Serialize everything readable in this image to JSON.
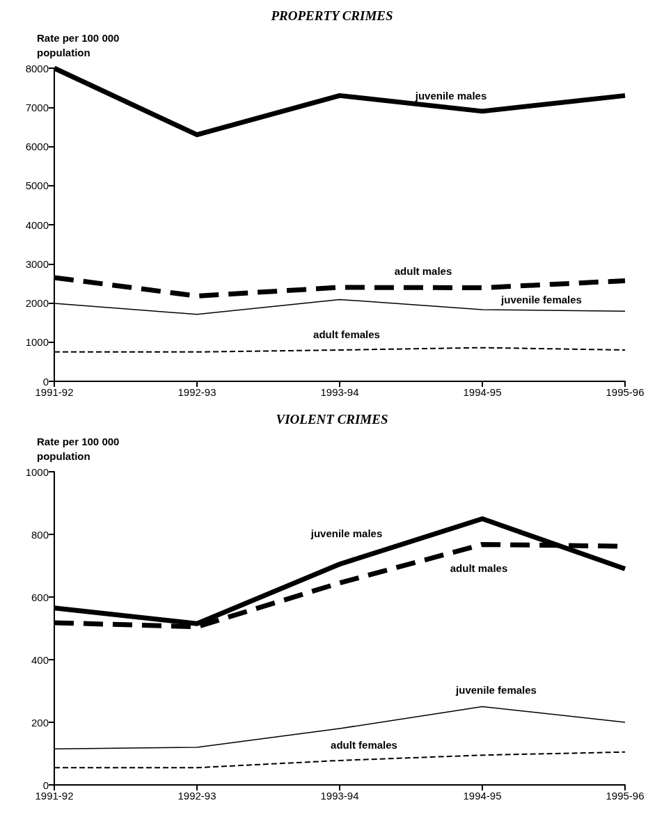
{
  "chart_data": [
    {
      "type": "line",
      "title": "PROPERTY CRIMES",
      "ylabel": "Rate per 100 000 population",
      "categories": [
        "1991-92",
        "1992-93",
        "1993-94",
        "1994-95",
        "1995-96"
      ],
      "ylim": [
        0,
        8000
      ],
      "yticks": [
        0,
        1000,
        2000,
        3000,
        4000,
        5000,
        6000,
        7000,
        8000
      ],
      "grid": false,
      "legend": false,
      "marker": "none",
      "series": [
        {
          "name": "juvenile males",
          "color": "#000000",
          "line_style": "solid",
          "values": [
            8000,
            6300,
            7300,
            6900,
            7300
          ]
        },
        {
          "name": "adult males",
          "color": "#000000",
          "line_style": "dashed",
          "values": [
            2650,
            2180,
            2400,
            2390,
            2570
          ]
        },
        {
          "name": "juvenile females",
          "color": "#000000",
          "line_style": "solid",
          "values": [
            1990,
            1710,
            2090,
            1830,
            1790
          ]
        },
        {
          "name": "adult females",
          "color": "#000000",
          "line_style": "dashed",
          "values": [
            750,
            750,
            800,
            860,
            800
          ]
        }
      ]
    },
    {
      "type": "line",
      "title": "VIOLENT CRIMES",
      "ylabel": "Rate per 100 000 population",
      "categories": [
        "1991-92",
        "1992-93",
        "1993-94",
        "1994-95",
        "1995-96"
      ],
      "ylim": [
        0,
        1000
      ],
      "yticks": [
        0,
        200,
        400,
        600,
        800,
        1000
      ],
      "grid": false,
      "legend": false,
      "marker": "none",
      "series": [
        {
          "name": "juvenile males",
          "color": "#000000",
          "line_style": "solid",
          "values": [
            565,
            515,
            705,
            850,
            690
          ]
        },
        {
          "name": "adult males",
          "color": "#000000",
          "line_style": "dashed",
          "values": [
            518,
            505,
            645,
            768,
            762
          ]
        },
        {
          "name": "juvenile females",
          "color": "#000000",
          "line_style": "solid",
          "values": [
            115,
            120,
            180,
            250,
            200
          ]
        },
        {
          "name": "adult females",
          "color": "#000000",
          "line_style": "dashed",
          "values": [
            55,
            55,
            78,
            95,
            105
          ]
        }
      ]
    }
  ]
}
